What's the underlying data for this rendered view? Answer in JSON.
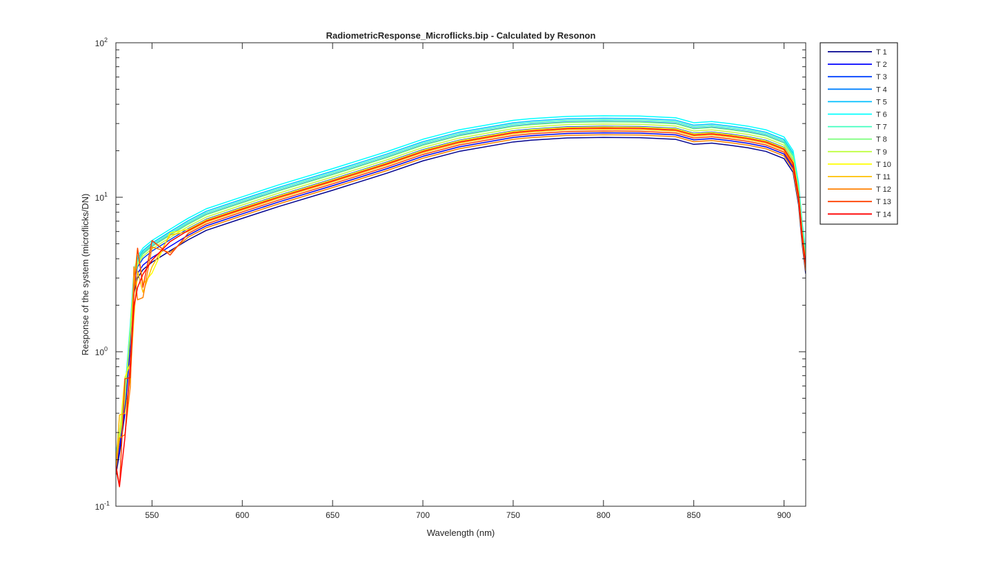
{
  "chart_data": {
    "type": "line",
    "title": "RadiometricResponse_Microflicks.bip - Calculated by Resonon",
    "xlabel": "Wavelength (nm)",
    "ylabel": "Response of the system (microflicks/DN)",
    "xlim": [
      530,
      912
    ],
    "ylim": [
      0.1,
      100
    ],
    "yscale": "log",
    "grid": false,
    "legend_position": "outside-top-right",
    "x_ticks": [
      550,
      600,
      650,
      700,
      750,
      800,
      850,
      900
    ],
    "y_ticks": [
      {
        "base": "10",
        "exp": "-1",
        "value": 0.1
      },
      {
        "base": "10",
        "exp": "0",
        "value": 1
      },
      {
        "base": "10",
        "exp": "1",
        "value": 10
      },
      {
        "base": "10",
        "exp": "2",
        "value": 100
      }
    ],
    "x": [
      530,
      532,
      535,
      538,
      540,
      542,
      545,
      550,
      560,
      570,
      580,
      600,
      620,
      650,
      680,
      700,
      720,
      750,
      760,
      780,
      800,
      820,
      840,
      850,
      860,
      870,
      880,
      890,
      900,
      905,
      908,
      910,
      912
    ],
    "base_profile": [
      0.16,
      0.22,
      0.4,
      1.1,
      2.4,
      3.0,
      3.4,
      3.8,
      4.5,
      5.3,
      6.1,
      7.3,
      8.7,
      11.1,
      14.3,
      17.2,
      19.8,
      22.8,
      23.4,
      24.2,
      24.4,
      24.3,
      23.7,
      22.0,
      22.4,
      21.7,
      20.9,
      19.8,
      17.8,
      14.5,
      9.0,
      5.0,
      3.2
    ],
    "series": [
      {
        "name": "T 1",
        "color": "#00008f",
        "scale": 1.0
      },
      {
        "name": "T 2",
        "color": "#0000ff",
        "scale": 1.07
      },
      {
        "name": "T 3",
        "color": "#0040ff",
        "scale": 1.18
      },
      {
        "name": "T 4",
        "color": "#0080ff",
        "scale": 1.27
      },
      {
        "name": "T 5",
        "color": "#00bfff",
        "scale": 1.33
      },
      {
        "name": "T 6",
        "color": "#00ffff",
        "scale": 1.38
      },
      {
        "name": "T 7",
        "color": "#40ffbf",
        "scale": 1.3
      },
      {
        "name": "T 8",
        "color": "#80ff80",
        "scale": 1.26
      },
      {
        "name": "T 9",
        "color": "#bfff40",
        "scale": 1.22
      },
      {
        "name": "T 10",
        "color": "#ffff00",
        "scale": 1.17
      },
      {
        "name": "T 11",
        "color": "#ffbf00",
        "scale": 1.13
      },
      {
        "name": "T 12",
        "color": "#ff8000",
        "scale": 1.04
      },
      {
        "name": "T 13",
        "color": "#ff4000",
        "scale": 1.1
      },
      {
        "name": "T 14",
        "color": "#ff0000",
        "scale": 1.15
      }
    ]
  }
}
